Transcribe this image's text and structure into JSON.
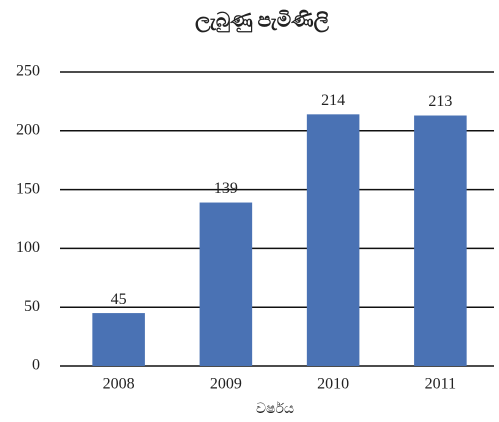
{
  "chart_data": {
    "type": "bar",
    "title": "ලැබුණු පැමිණිලි",
    "x_label": "වර්ෂය",
    "categories": [
      "2008",
      "2009",
      "2010",
      "2011"
    ],
    "values": [
      45,
      139,
      214,
      213
    ],
    "color": "#4a72b4",
    "ylim": [
      0,
      250
    ],
    "yticks": [
      0,
      50,
      100,
      150,
      200,
      250
    ],
    "grid": true
  }
}
